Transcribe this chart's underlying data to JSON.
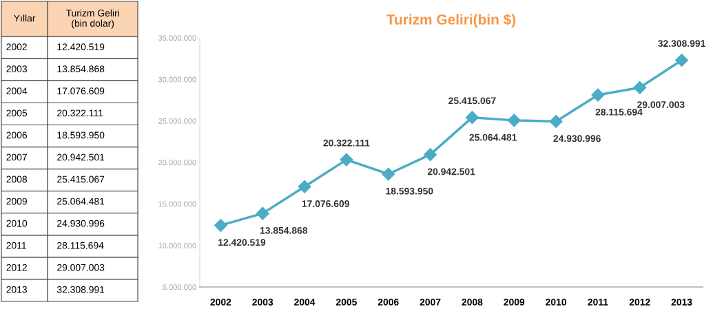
{
  "chart_data": {
    "type": "line",
    "title": "Turizm Geliri(bin $)",
    "categories": [
      "2002",
      "2003",
      "2004",
      "2005",
      "2006",
      "2007",
      "2008",
      "2009",
      "2010",
      "2011",
      "2012",
      "2013"
    ],
    "series": [
      {
        "color": "#4bacc6",
        "values": [
          12420519,
          13854868,
          17076609,
          20322111,
          18593950,
          20942501,
          25415067,
          25064481,
          24930996,
          28115694,
          29007003,
          32308991
        ]
      }
    ],
    "ylim": [
      5000000,
      35000000
    ],
    "yticks": [
      {
        "value": 5000000,
        "label": "5.000.000"
      },
      {
        "value": 10000000,
        "label": "10.000.000"
      },
      {
        "value": 15000000,
        "label": "15.000.000"
      },
      {
        "value": 20000000,
        "label": "20.000.000"
      },
      {
        "value": 25000000,
        "label": "25.000.000"
      },
      {
        "value": 30000000,
        "label": "30.000.000"
      },
      {
        "value": 35000000,
        "label": "35.000.000"
      }
    ],
    "value_labels": [
      "12.420.519",
      "13.854.868",
      "17.076.609",
      "20.322.111",
      "18.593.950",
      "20.942.501",
      "25.415.067",
      "25.064.481",
      "24.930.996",
      "28.115.694",
      "29.007.003",
      "32.308.991"
    ],
    "marker": "diamond",
    "line_style": "solid",
    "grid": false,
    "annotations": [
      "Yıllar",
      "Turizm Geliri (bin dolar)"
    ]
  }
}
